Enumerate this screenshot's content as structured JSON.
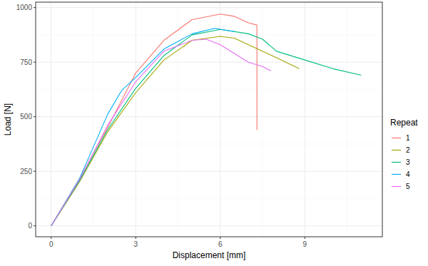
{
  "chart_data": {
    "type": "line",
    "x_label": "Displacement [mm]",
    "y_label": "Load [N]",
    "legend_title": "Repeat",
    "xlim": [
      -0.55,
      11.75
    ],
    "xticks": [
      0,
      3,
      6,
      9
    ],
    "ylim": [
      -50,
      1025
    ],
    "yticks": [
      0,
      250,
      500,
      750,
      1000
    ],
    "grid": true,
    "legend": "right",
    "series": [
      {
        "name": "1",
        "color": "#F8766D",
        "x": [
          0,
          1,
          2,
          3,
          4,
          5,
          6,
          6.5,
          7,
          7.3,
          7.3
        ],
        "values": [
          0,
          215,
          450,
          700,
          850,
          945,
          970,
          960,
          930,
          920,
          440
        ]
      },
      {
        "name": "2",
        "color": "#A3A500",
        "x": [
          0,
          1,
          2,
          3,
          4,
          5,
          6,
          6.5,
          7,
          8,
          8.8
        ],
        "values": [
          0,
          200,
          430,
          610,
          760,
          850,
          868,
          860,
          830,
          770,
          720
        ]
      },
      {
        "name": "3",
        "color": "#00BF7D",
        "x": [
          0,
          1,
          2,
          3,
          4,
          5,
          6,
          7,
          7.5,
          8,
          9,
          10,
          11
        ],
        "values": [
          0,
          205,
          440,
          630,
          780,
          875,
          900,
          880,
          855,
          800,
          760,
          720,
          690
        ]
      },
      {
        "name": "4",
        "color": "#00B0F6",
        "x": [
          0,
          1,
          2,
          2.5,
          3,
          4,
          5,
          5.8,
          6.5
        ],
        "values": [
          0,
          215,
          510,
          620,
          680,
          810,
          880,
          905,
          890
        ]
      },
      {
        "name": "5",
        "color": "#E76BF3",
        "x": [
          0,
          1,
          2,
          3,
          4,
          5,
          5.5,
          6,
          6.5,
          7,
          7.5,
          7.8
        ],
        "values": [
          0,
          210,
          460,
          660,
          800,
          850,
          855,
          830,
          790,
          750,
          730,
          710
        ]
      }
    ]
  }
}
